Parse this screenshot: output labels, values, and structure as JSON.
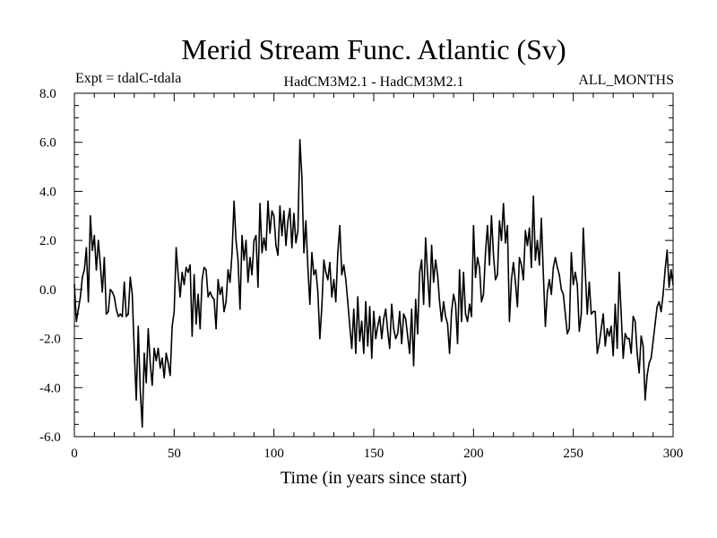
{
  "chart_data": {
    "type": "line",
    "title": "Merid Stream Func. Atlantic (Sv)",
    "subtitle_left": "Expt = tdalC-tdala",
    "subtitle_center": "HadCM3M2.1 - HadCM3M2.1",
    "subtitle_right": "ALL_MONTHS",
    "xlabel": "Time (in years since start)",
    "ylabel": "",
    "xlim": [
      0,
      300
    ],
    "ylim": [
      -6,
      8
    ],
    "xticks": [
      0,
      50,
      100,
      150,
      200,
      250,
      300
    ],
    "xtick_labels": [
      "0",
      "50",
      "100",
      "150",
      "200",
      "250",
      "300"
    ],
    "yticks": [
      -6,
      -4,
      -2,
      0,
      2,
      4,
      6,
      8
    ],
    "ytick_labels": [
      "-6.0",
      "-4.0",
      "-2.0",
      "0.0",
      "2.0",
      "4.0",
      "6.0",
      "8.0"
    ],
    "grid": false,
    "series": [
      {
        "name": "Merid Stream Func. Atlantic",
        "color": "#000000",
        "points": [
          [
            0,
            0.2
          ],
          [
            1,
            -1.3
          ],
          [
            2,
            -0.8
          ],
          [
            3,
            -0.3
          ],
          [
            4,
            0.5
          ],
          [
            5,
            0.8
          ],
          [
            6,
            1.7
          ],
          [
            7,
            -0.5
          ],
          [
            8,
            3.0
          ],
          [
            9,
            1.6
          ],
          [
            10,
            2.2
          ],
          [
            11,
            0.8
          ],
          [
            12,
            2.0
          ],
          [
            13,
            1.0
          ],
          [
            14,
            -0.1
          ],
          [
            15,
            1.3
          ],
          [
            16,
            -1.0
          ],
          [
            17,
            -0.9
          ],
          [
            18,
            0.0
          ],
          [
            19,
            -0.1
          ],
          [
            20,
            -0.3
          ],
          [
            21,
            -0.8
          ],
          [
            22,
            -1.1
          ],
          [
            23,
            -1.0
          ],
          [
            24,
            -1.1
          ],
          [
            25,
            0.3
          ],
          [
            26,
            -1.1
          ],
          [
            27,
            -1.0
          ],
          [
            28,
            0.5
          ],
          [
            29,
            -0.2
          ],
          [
            30,
            -2.5
          ],
          [
            31,
            -4.5
          ],
          [
            32,
            -1.5
          ],
          [
            33,
            -4.1
          ],
          [
            34,
            -5.6
          ],
          [
            35,
            -2.6
          ],
          [
            36,
            -3.8
          ],
          [
            37,
            -1.6
          ],
          [
            38,
            -3.0
          ],
          [
            39,
            -3.9
          ],
          [
            40,
            -2.4
          ],
          [
            41,
            -2.9
          ],
          [
            42,
            -2.4
          ],
          [
            43,
            -3.2
          ],
          [
            44,
            -2.8
          ],
          [
            45,
            -3.6
          ],
          [
            46,
            -2.6
          ],
          [
            47,
            -3.0
          ],
          [
            48,
            -3.5
          ],
          [
            49,
            -1.5
          ],
          [
            50,
            -0.9
          ],
          [
            51,
            1.7
          ],
          [
            52,
            0.6
          ],
          [
            53,
            -0.3
          ],
          [
            54,
            0.7
          ],
          [
            55,
            0.2
          ],
          [
            56,
            0.9
          ],
          [
            57,
            0.7
          ],
          [
            58,
            1.0
          ],
          [
            59,
            -1.9
          ],
          [
            60,
            0.6
          ],
          [
            61,
            -1.4
          ],
          [
            62,
            -0.2
          ],
          [
            63,
            -1.6
          ],
          [
            64,
            0.4
          ],
          [
            65,
            0.9
          ],
          [
            66,
            0.8
          ],
          [
            67,
            -0.3
          ],
          [
            68,
            -0.1
          ],
          [
            69,
            -0.3
          ],
          [
            70,
            -0.4
          ],
          [
            71,
            -1.6
          ],
          [
            72,
            0.4
          ],
          [
            73,
            -0.2
          ],
          [
            74,
            0.1
          ],
          [
            75,
            -0.9
          ],
          [
            76,
            -0.5
          ],
          [
            77,
            0.8
          ],
          [
            78,
            0.3
          ],
          [
            79,
            1.5
          ],
          [
            80,
            3.6
          ],
          [
            81,
            2.0
          ],
          [
            82,
            1.2
          ],
          [
            83,
            -0.8
          ],
          [
            84,
            2.2
          ],
          [
            85,
            1.2
          ],
          [
            86,
            2.0
          ],
          [
            87,
            0.3
          ],
          [
            88,
            1.3
          ],
          [
            89,
            0.6
          ],
          [
            90,
            2.0
          ],
          [
            91,
            2.2
          ],
          [
            92,
            0.1
          ],
          [
            93,
            3.5
          ],
          [
            94,
            1.5
          ],
          [
            95,
            2.1
          ],
          [
            96,
            1.6
          ],
          [
            97,
            3.6
          ],
          [
            98,
            2.3
          ],
          [
            99,
            3.2
          ],
          [
            100,
            3.0
          ],
          [
            101,
            1.8
          ],
          [
            102,
            1.4
          ],
          [
            103,
            3.4
          ],
          [
            104,
            2.2
          ],
          [
            105,
            3.2
          ],
          [
            106,
            1.8
          ],
          [
            107,
            2.8
          ],
          [
            108,
            3.3
          ],
          [
            109,
            1.7
          ],
          [
            110,
            3.1
          ],
          [
            111,
            1.9
          ],
          [
            112,
            2.4
          ],
          [
            113,
            6.1
          ],
          [
            114,
            4.6
          ],
          [
            115,
            1.5
          ],
          [
            116,
            2.8
          ],
          [
            117,
            0.9
          ],
          [
            118,
            -0.6
          ],
          [
            119,
            1.5
          ],
          [
            120,
            0.6
          ],
          [
            121,
            0.8
          ],
          [
            122,
            -0.1
          ],
          [
            123,
            -2.0
          ],
          [
            124,
            -0.7
          ],
          [
            125,
            1.2
          ],
          [
            126,
            0.7
          ],
          [
            127,
            0.4
          ],
          [
            128,
            1.1
          ],
          [
            129,
            -0.3
          ],
          [
            130,
            0.4
          ],
          [
            131,
            -0.5
          ],
          [
            132,
            1.5
          ],
          [
            133,
            2.6
          ],
          [
            134,
            0.6
          ],
          [
            135,
            1.0
          ],
          [
            136,
            0.4
          ],
          [
            137,
            -0.5
          ],
          [
            138,
            -1.5
          ],
          [
            139,
            -2.4
          ],
          [
            140,
            -0.8
          ],
          [
            141,
            -2.6
          ],
          [
            142,
            -0.3
          ],
          [
            143,
            -2.1
          ],
          [
            144,
            -1.3
          ],
          [
            145,
            -2.6
          ],
          [
            146,
            -0.5
          ],
          [
            147,
            -2.3
          ],
          [
            148,
            -0.7
          ],
          [
            149,
            -2.8
          ],
          [
            150,
            -0.9
          ],
          [
            151,
            -2.0
          ],
          [
            152,
            -1.5
          ],
          [
            153,
            -1.1
          ],
          [
            154,
            -2.0
          ],
          [
            155,
            -1.2
          ],
          [
            156,
            -0.8
          ],
          [
            157,
            -1.7
          ],
          [
            158,
            -2.4
          ],
          [
            159,
            -0.6
          ],
          [
            160,
            -1.6
          ],
          [
            161,
            -2.0
          ],
          [
            162,
            -1.8
          ],
          [
            163,
            -0.9
          ],
          [
            164,
            -2.2
          ],
          [
            165,
            -1.0
          ],
          [
            166,
            -1.2
          ],
          [
            167,
            -1.9
          ],
          [
            168,
            -2.6
          ],
          [
            169,
            -0.8
          ],
          [
            170,
            -3.1
          ],
          [
            171,
            -0.4
          ],
          [
            172,
            -1.8
          ],
          [
            173,
            0.7
          ],
          [
            174,
            1.2
          ],
          [
            175,
            -0.6
          ],
          [
            176,
            2.1
          ],
          [
            177,
            0.6
          ],
          [
            178,
            -0.7
          ],
          [
            179,
            1.8
          ],
          [
            180,
            0.3
          ],
          [
            181,
            1.2
          ],
          [
            182,
            0.6
          ],
          [
            183,
            -0.5
          ],
          [
            184,
            -1.3
          ],
          [
            185,
            -0.5
          ],
          [
            186,
            -1.1
          ],
          [
            187,
            -1.4
          ],
          [
            188,
            -2.6
          ],
          [
            189,
            -0.9
          ],
          [
            190,
            -0.2
          ],
          [
            191,
            -0.6
          ],
          [
            192,
            -2.2
          ],
          [
            193,
            0.8
          ],
          [
            194,
            -1.3
          ],
          [
            195,
            0.7
          ],
          [
            196,
            -1.0
          ],
          [
            197,
            -1.3
          ],
          [
            198,
            -0.6
          ],
          [
            199,
            -1.1
          ],
          [
            200,
            2.6
          ],
          [
            201,
            0.5
          ],
          [
            202,
            1.3
          ],
          [
            203,
            0.9
          ],
          [
            204,
            -0.5
          ],
          [
            205,
            -0.2
          ],
          [
            206,
            1.5
          ],
          [
            207,
            2.6
          ],
          [
            208,
            1.0
          ],
          [
            209,
            3.0
          ],
          [
            210,
            1.4
          ],
          [
            211,
            0.4
          ],
          [
            212,
            0.6
          ],
          [
            213,
            2.8
          ],
          [
            214,
            2.0
          ],
          [
            215,
            3.5
          ],
          [
            216,
            1.9
          ],
          [
            217,
            2.6
          ],
          [
            218,
            -1.3
          ],
          [
            219,
            0.4
          ],
          [
            220,
            1.1
          ],
          [
            221,
            0.3
          ],
          [
            222,
            -0.7
          ],
          [
            223,
            1.3
          ],
          [
            224,
            1.0
          ],
          [
            225,
            0.4
          ],
          [
            226,
            2.4
          ],
          [
            227,
            1.8
          ],
          [
            228,
            2.5
          ],
          [
            229,
            0.9
          ],
          [
            230,
            3.8
          ],
          [
            231,
            1.2
          ],
          [
            232,
            2.0
          ],
          [
            233,
            1.0
          ],
          [
            234,
            2.9
          ],
          [
            235,
            0.6
          ],
          [
            236,
            -1.5
          ],
          [
            237,
            -0.1
          ],
          [
            238,
            0.4
          ],
          [
            239,
            -0.2
          ],
          [
            240,
            0.9
          ],
          [
            241,
            1.3
          ],
          [
            242,
            0.9
          ],
          [
            243,
            0.6
          ],
          [
            244,
            0.0
          ],
          [
            245,
            -0.2
          ],
          [
            246,
            -1.0
          ],
          [
            247,
            -1.8
          ],
          [
            248,
            -1.6
          ],
          [
            249,
            1.5
          ],
          [
            250,
            0.2
          ],
          [
            251,
            0.7
          ],
          [
            252,
            0.2
          ],
          [
            253,
            -1.7
          ],
          [
            254,
            -1.0
          ],
          [
            255,
            2.5
          ],
          [
            256,
            0.7
          ],
          [
            257,
            -1.0
          ],
          [
            258,
            0.3
          ],
          [
            259,
            -1.0
          ],
          [
            260,
            -0.9
          ],
          [
            261,
            -0.9
          ],
          [
            262,
            -2.6
          ],
          [
            263,
            -2.2
          ],
          [
            264,
            -1.6
          ],
          [
            265,
            -1.0
          ],
          [
            266,
            -2.3
          ],
          [
            267,
            -1.6
          ],
          [
            268,
            -1.9
          ],
          [
            269,
            -1.5
          ],
          [
            270,
            -2.7
          ],
          [
            271,
            -0.6
          ],
          [
            272,
            -2.4
          ],
          [
            273,
            0.7
          ],
          [
            274,
            -1.0
          ],
          [
            275,
            -2.8
          ],
          [
            276,
            -1.8
          ],
          [
            277,
            -2.0
          ],
          [
            278,
            -2.0
          ],
          [
            279,
            -2.6
          ],
          [
            280,
            -1.1
          ],
          [
            281,
            -1.3
          ],
          [
            282,
            -2.6
          ],
          [
            283,
            -3.4
          ],
          [
            284,
            -1.9
          ],
          [
            285,
            -2.3
          ],
          [
            286,
            -4.5
          ],
          [
            287,
            -3.5
          ],
          [
            288,
            -3.0
          ],
          [
            289,
            -2.8
          ],
          [
            290,
            -2.1
          ],
          [
            291,
            -1.4
          ],
          [
            292,
            -0.7
          ],
          [
            293,
            -0.5
          ],
          [
            294,
            -0.9
          ],
          [
            295,
            -0.2
          ],
          [
            296,
            0.8
          ],
          [
            297,
            1.6
          ],
          [
            298,
            0.1
          ],
          [
            299,
            0.8
          ],
          [
            300,
            0.2
          ]
        ]
      }
    ]
  }
}
